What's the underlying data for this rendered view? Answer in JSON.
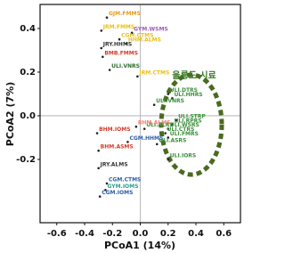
{
  "chart_data": {
    "type": "scatter",
    "xlabel": "PCoA1 (14%)",
    "ylabel": "PCoA2 (7%)",
    "annotation": "울릉도 시료",
    "xlim": [
      -0.72,
      0.72
    ],
    "ylim": [
      -0.49,
      0.51
    ],
    "xticks": [
      -0.6,
      -0.4,
      -0.2,
      {
        "value": 0,
        "label": "0.0"
      },
      0.2,
      0.4,
      0.6
    ],
    "yticks": [
      -0.2,
      {
        "value": 0,
        "label": "0.0"
      },
      0.2,
      0.4
    ],
    "zero_lines": true,
    "point_color": "#222",
    "points": [
      {
        "label": "GJM.FMMS",
        "color": "#e69a1b",
        "x": -0.24,
        "y": 0.45
      },
      {
        "label": "JRM.FMMS",
        "color": "#e8c01a",
        "x": -0.28,
        "y": 0.39
      },
      {
        "label": "GYM.WSMS",
        "color": "#9b59b6",
        "x": -0.06,
        "y": 0.38
      },
      {
        "label": "CGM.CTMS",
        "color": "#e8c01a",
        "x": -0.15,
        "y": 0.35
      },
      {
        "label": "HHM.ALMS",
        "color": "#e8c01a",
        "x": -0.1,
        "y": 0.33
      },
      {
        "label": "JRY.HHMS",
        "color": "#333333",
        "x": -0.28,
        "y": 0.31
      },
      {
        "label": "BMB.FMMS",
        "color": "#d43b2a",
        "x": -0.27,
        "y": 0.27
      },
      {
        "label": "ULI.VNRS",
        "color": "#2e6b2e",
        "x": -0.22,
        "y": 0.21
      },
      {
        "label": "JRM.CTMS",
        "color": "#e8c01a",
        "x": -0.02,
        "y": 0.18
      },
      {
        "label": "ULI.DTRS",
        "color": "#3b8f3b",
        "x": 0.2,
        "y": 0.1
      },
      {
        "label": "ULI.HHRS",
        "color": "#3b8f3b",
        "x": 0.23,
        "y": 0.08
      },
      {
        "label": "ULI.VNRS",
        "color": "#3b8f3b",
        "x": 0.1,
        "y": 0.05
      },
      {
        "label": "ULI.STRP",
        "color": "#3b8f3b",
        "x": 0.26,
        "y": -0.02
      },
      {
        "label": "ULI.RPRS",
        "color": "#3b8f3b",
        "x": 0.23,
        "y": -0.04
      },
      {
        "label": "ULI.WSRS",
        "color": "#3b8f3b",
        "x": 0.2,
        "y": -0.06
      },
      {
        "label": "ULI.CTRS",
        "color": "#3b8f3b",
        "x": 0.18,
        "y": -0.08
      },
      {
        "label": "ULI.FMRS",
        "color": "#3b8f3b",
        "x": 0.2,
        "y": -0.1
      },
      {
        "label": "ULI.ALRS",
        "color": "#3b8f3b",
        "x": 0.03,
        "y": -0.06
      },
      {
        "label": "ULI.ASRS",
        "color": "#3b8f3b",
        "x": 0.12,
        "y": -0.13
      },
      {
        "label": "ULI.IORS",
        "color": "#3b8f3b",
        "x": 0.2,
        "y": -0.2
      },
      {
        "label": "BHM.IOMS",
        "color": "#d43b2a",
        "x": -0.31,
        "y": -0.08
      },
      {
        "label": "BHM.ALMS",
        "color": "#f08070",
        "x": -0.03,
        "y": -0.05
      },
      {
        "label": "CGM.HHMS",
        "color": "#2a5fa8",
        "x": -0.09,
        "y": -0.12
      },
      {
        "label": "BHM.ASMS",
        "color": "#d43b2a",
        "x": -0.3,
        "y": -0.16
      },
      {
        "label": "JRY.ALMS",
        "color": "#333333",
        "x": -0.3,
        "y": -0.24
      },
      {
        "label": "CGM.CTMS",
        "color": "#2a5fa8",
        "x": -0.24,
        "y": -0.31
      },
      {
        "label": "GYM.IOMS",
        "color": "#2a9d8f",
        "x": -0.25,
        "y": -0.34
      },
      {
        "label": "CGM.IOMS",
        "color": "#2a5fa8",
        "x": -0.29,
        "y": -0.37
      }
    ]
  }
}
